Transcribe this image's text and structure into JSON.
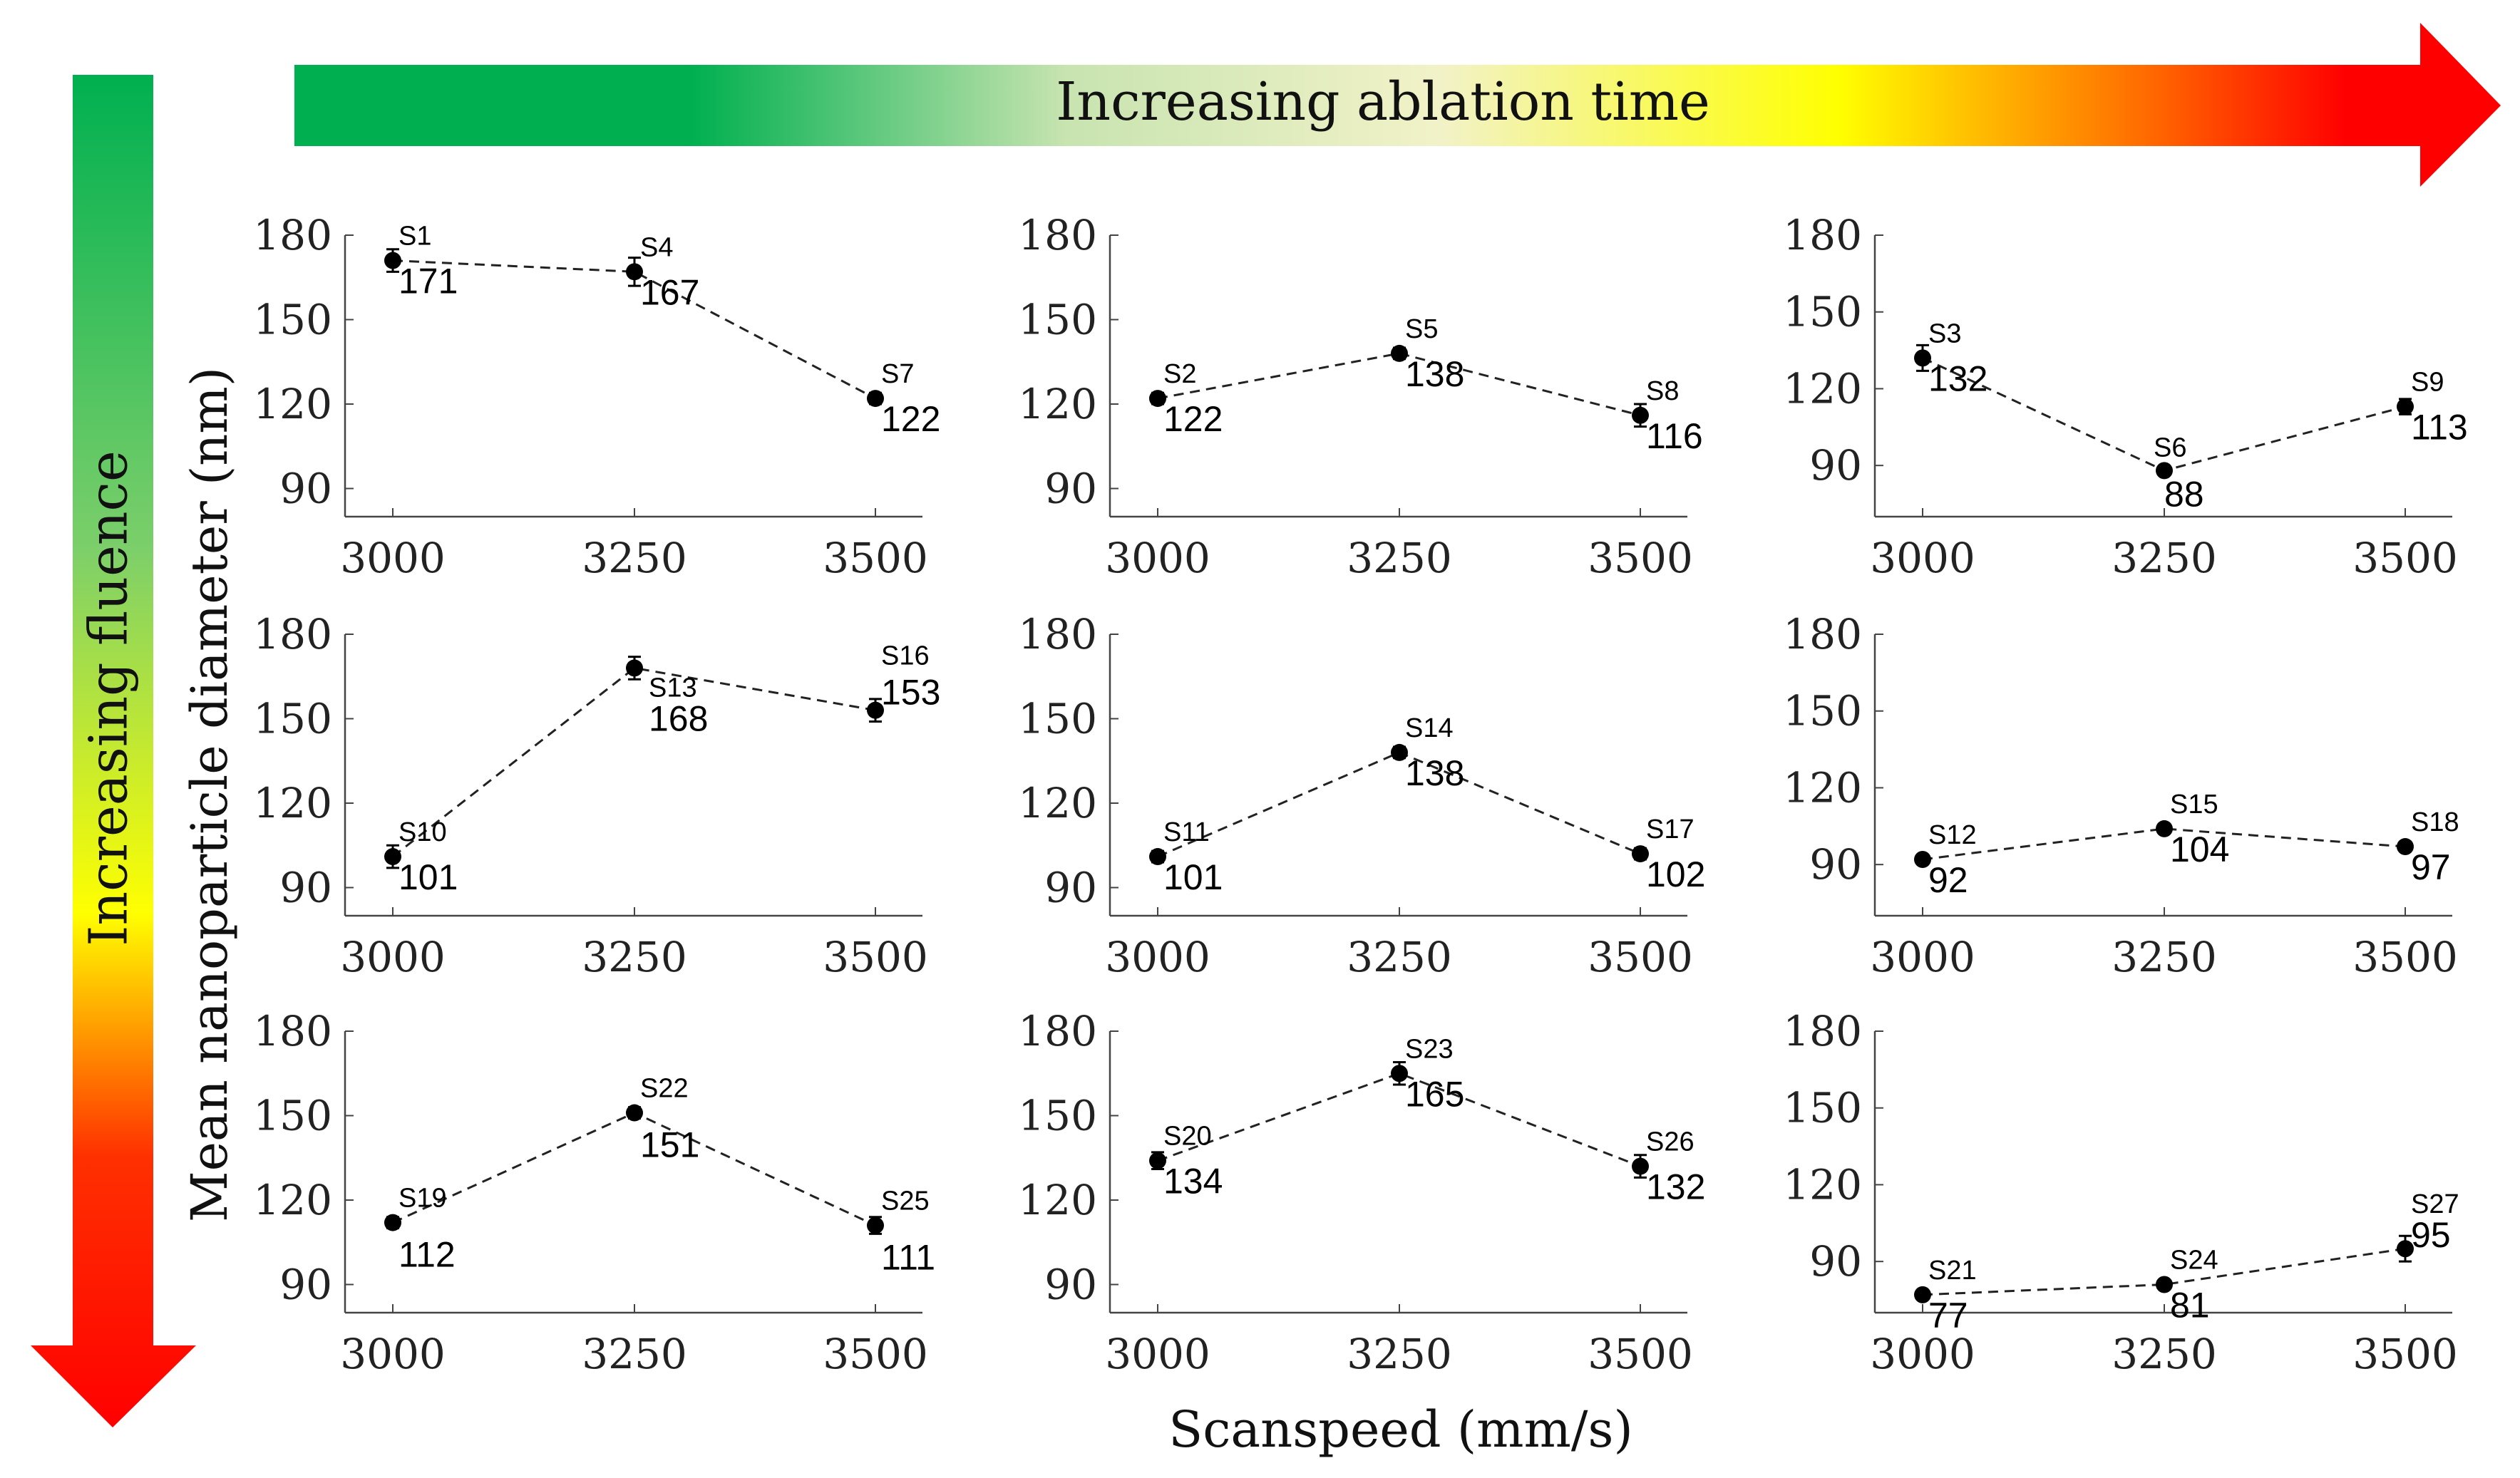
{
  "arrows": {
    "horizontal_label": "Increasing ablation time",
    "vertical_label": "Increasing fluence",
    "gradient_colors": [
      "#00b050",
      "#e8f0c8",
      "#ffff00",
      "#ff0000"
    ]
  },
  "axis": {
    "ylabel": "Mean nanoparticle diameter (nm)",
    "xlabel": "Scanspeed (mm/s)"
  },
  "chart_data": [
    {
      "type": "line",
      "x": [
        3000,
        3250,
        3500
      ],
      "xticks": [
        "3000",
        "3250",
        "3500"
      ],
      "yticks": [
        "90",
        "120",
        "150",
        "180"
      ],
      "ylim": [
        80,
        180
      ],
      "points": [
        {
          "label": "S1",
          "value": "171",
          "y": 171,
          "err": 4
        },
        {
          "label": "S4",
          "value": "167",
          "y": 167,
          "err": 5
        },
        {
          "label": "S7",
          "value": "122",
          "y": 122,
          "err": 2
        }
      ]
    },
    {
      "type": "line",
      "x": [
        3000,
        3250,
        3500
      ],
      "xticks": [
        "3000",
        "3250",
        "3500"
      ],
      "yticks": [
        "90",
        "120",
        "150",
        "180"
      ],
      "ylim": [
        80,
        180
      ],
      "points": [
        {
          "label": "S2",
          "value": "122",
          "y": 122,
          "err": 2
        },
        {
          "label": "S5",
          "value": "138",
          "y": 138,
          "err": 2
        },
        {
          "label": "S8",
          "value": "116",
          "y": 116,
          "err": 4
        }
      ]
    },
    {
      "type": "line",
      "x": [
        3000,
        3250,
        3500
      ],
      "xticks": [
        "3000",
        "3250",
        "3500"
      ],
      "yticks": [
        "90",
        "120",
        "150",
        "180"
      ],
      "ylim": [
        70,
        180
      ],
      "points": [
        {
          "label": "S3",
          "value": "132",
          "y": 132,
          "err": 5
        },
        {
          "label": "S6",
          "value": "88",
          "y": 88,
          "err": 1
        },
        {
          "label": "S9",
          "value": "113",
          "y": 113,
          "err": 3
        }
      ]
    },
    {
      "type": "line",
      "x": [
        3000,
        3250,
        3500
      ],
      "xticks": [
        "3000",
        "3250",
        "3500"
      ],
      "yticks": [
        "90",
        "120",
        "150",
        "180"
      ],
      "ylim": [
        80,
        180
      ],
      "points": [
        {
          "label": "S10",
          "value": "101",
          "y": 101,
          "err": 4
        },
        {
          "label": "S13",
          "value": "168",
          "y": 168,
          "err": 4
        },
        {
          "label": "S16",
          "value": "153",
          "y": 153,
          "err": 4
        }
      ]
    },
    {
      "type": "line",
      "x": [
        3000,
        3250,
        3500
      ],
      "xticks": [
        "3000",
        "3250",
        "3500"
      ],
      "yticks": [
        "90",
        "120",
        "150",
        "180"
      ],
      "ylim": [
        80,
        180
      ],
      "points": [
        {
          "label": "S11",
          "value": "101",
          "y": 101,
          "err": 2
        },
        {
          "label": "S14",
          "value": "138",
          "y": 138,
          "err": 2
        },
        {
          "label": "S17",
          "value": "102",
          "y": 102,
          "err": 2
        }
      ]
    },
    {
      "type": "line",
      "x": [
        3000,
        3250,
        3500
      ],
      "xticks": [
        "3000",
        "3250",
        "3500"
      ],
      "yticks": [
        "90",
        "120",
        "150",
        "180"
      ],
      "ylim": [
        70,
        180
      ],
      "points": [
        {
          "label": "S12",
          "value": "92",
          "y": 92,
          "err": 1
        },
        {
          "label": "S15",
          "value": "104",
          "y": 104,
          "err": 1
        },
        {
          "label": "S18",
          "value": "97",
          "y": 97,
          "err": 1
        }
      ]
    },
    {
      "type": "line",
      "x": [
        3000,
        3250,
        3500
      ],
      "xticks": [
        "3000",
        "3250",
        "3500"
      ],
      "yticks": [
        "90",
        "120",
        "150",
        "180"
      ],
      "ylim": [
        80,
        180
      ],
      "points": [
        {
          "label": "S19",
          "value": "112",
          "y": 112,
          "err": 2
        },
        {
          "label": "S22",
          "value": "151",
          "y": 151,
          "err": 2
        },
        {
          "label": "S25",
          "value": "111",
          "y": 111,
          "err": 3
        }
      ]
    },
    {
      "type": "line",
      "x": [
        3000,
        3250,
        3500
      ],
      "xticks": [
        "3000",
        "3250",
        "3500"
      ],
      "yticks": [
        "90",
        "120",
        "150",
        "180"
      ],
      "ylim": [
        80,
        180
      ],
      "points": [
        {
          "label": "S20",
          "value": "134",
          "y": 134,
          "err": 3
        },
        {
          "label": "S23",
          "value": "165",
          "y": 165,
          "err": 4
        },
        {
          "label": "S26",
          "value": "132",
          "y": 132,
          "err": 4
        }
      ]
    },
    {
      "type": "line",
      "x": [
        3000,
        3250,
        3500
      ],
      "xticks": [
        "3000",
        "3250",
        "3500"
      ],
      "yticks": [
        "90",
        "120",
        "150",
        "180"
      ],
      "ylim": [
        70,
        180
      ],
      "points": [
        {
          "label": "S21",
          "value": "77",
          "y": 77,
          "err": 1
        },
        {
          "label": "S24",
          "value": "81",
          "y": 81,
          "err": 1
        },
        {
          "label": "S27",
          "value": "95",
          "y": 95,
          "err": 5
        }
      ]
    }
  ]
}
